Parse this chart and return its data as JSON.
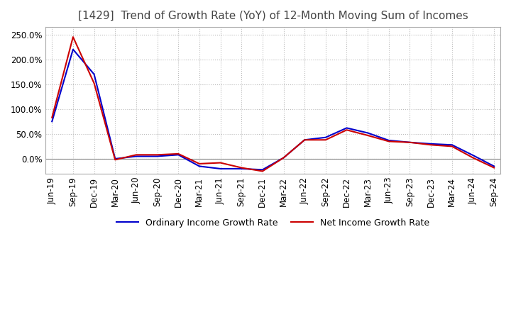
{
  "title": "[1429]  Trend of Growth Rate (YoY) of 12-Month Moving Sum of Incomes",
  "title_fontsize": 11,
  "ylim": [
    -30,
    265
  ],
  "yticks": [
    0,
    50,
    100,
    150,
    200,
    250
  ],
  "grid_color": "#bbbbbb",
  "legend_labels": [
    "Ordinary Income Growth Rate",
    "Net Income Growth Rate"
  ],
  "legend_colors": [
    "#0000cc",
    "#cc0000"
  ],
  "x_labels": [
    "Jun-19",
    "Sep-19",
    "Dec-19",
    "Mar-20",
    "Jun-20",
    "Sep-20",
    "Dec-20",
    "Mar-21",
    "Jun-21",
    "Sep-21",
    "Dec-21",
    "Mar-22",
    "Jun-22",
    "Sep-22",
    "Dec-22",
    "Mar-23",
    "Jun-23",
    "Sep-23",
    "Dec-23",
    "Mar-24",
    "Jun-24",
    "Sep-24"
  ],
  "ordinary_income_growth": [
    75,
    220,
    170,
    0,
    5,
    5,
    8,
    -15,
    -20,
    -20,
    -22,
    2,
    38,
    43,
    62,
    52,
    37,
    33,
    30,
    28,
    7,
    -15
  ],
  "net_income_growth": [
    83,
    245,
    152,
    -2,
    8,
    8,
    10,
    -10,
    -8,
    -18,
    -25,
    2,
    38,
    38,
    58,
    47,
    35,
    33,
    28,
    25,
    2,
    -18
  ]
}
